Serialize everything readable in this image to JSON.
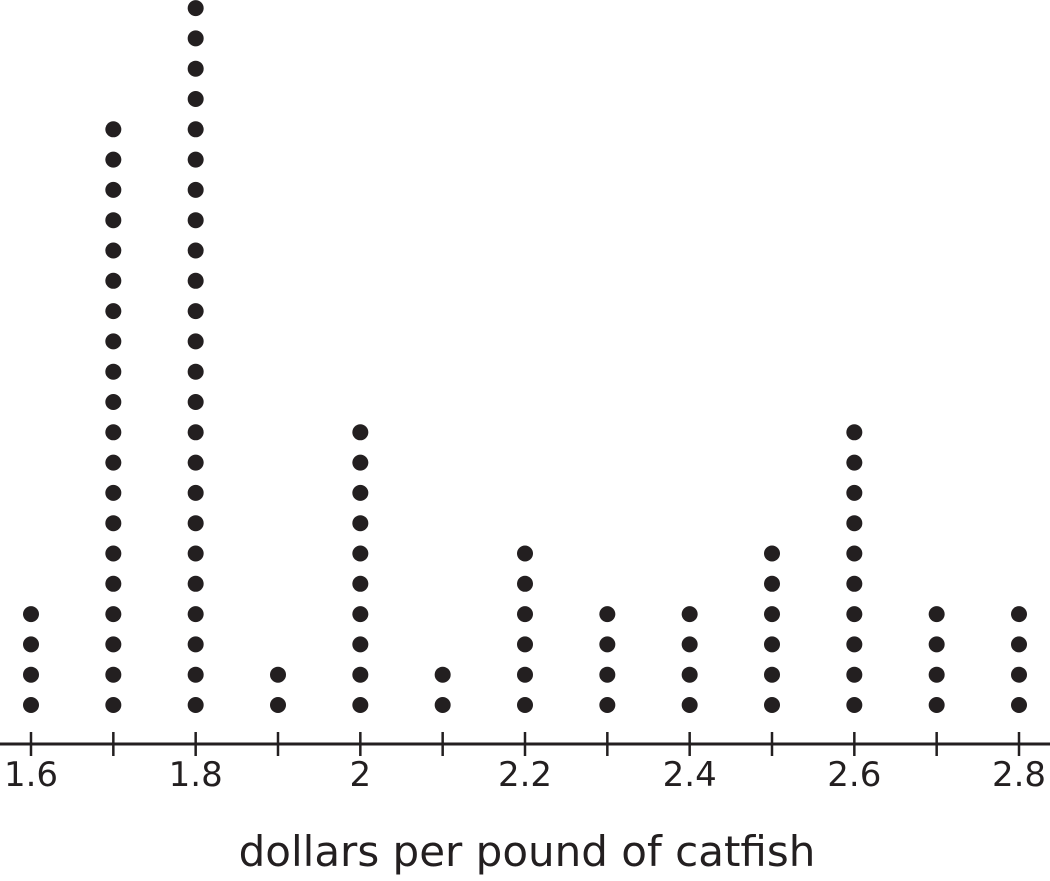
{
  "chart_data": {
    "type": "dot-plot",
    "title": "",
    "xlabel": "dollars per pound of catfish",
    "ylabel": "",
    "xlim": [
      1.6,
      2.8
    ],
    "grid": false,
    "x_tick_labels": [
      "1.6",
      "1.8",
      "2",
      "2.2",
      "2.4",
      "2.6",
      "2.8"
    ],
    "x": [
      1.6,
      1.7,
      1.8,
      1.9,
      2.0,
      2.1,
      2.2,
      2.3,
      2.4,
      2.5,
      2.6,
      2.7,
      2.8
    ],
    "counts": [
      4,
      20,
      24,
      2,
      10,
      2,
      6,
      4,
      4,
      6,
      10,
      4,
      4
    ],
    "dot_color": "#231f20",
    "axis_color": "#231f20"
  }
}
